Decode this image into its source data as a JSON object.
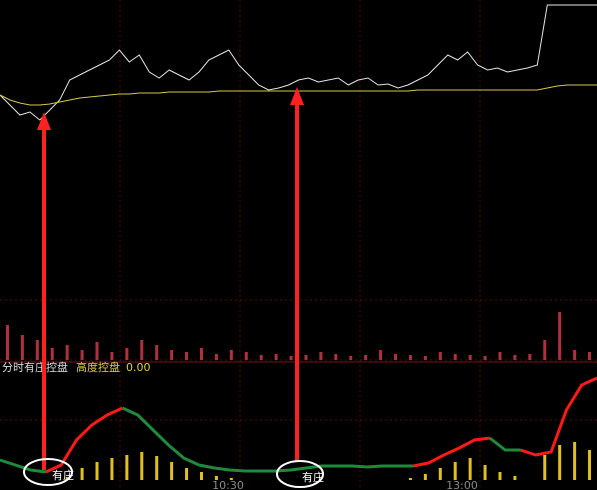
{
  "indicator": {
    "name": "分时有庄控盘",
    "label": "高度控盘",
    "value": "0.00"
  },
  "time_labels": [
    "10:30",
    "13:00"
  ],
  "annotations": [
    "有庄",
    "有庄"
  ],
  "chart_data": [
    {
      "type": "line",
      "ylim": [
        0,
        300
      ],
      "grid": true,
      "series": [
        {
          "color": "#e6e6e6",
          "values": [
            205,
            195,
            185,
            188,
            180,
            190,
            200,
            220,
            225,
            230,
            235,
            240,
            250,
            238,
            245,
            228,
            222,
            230,
            225,
            220,
            228,
            240,
            245,
            250,
            235,
            225,
            215,
            210,
            212,
            215,
            220,
            222,
            218,
            220,
            222,
            215,
            220,
            222,
            215,
            216,
            212,
            215,
            220,
            225,
            235,
            245,
            240,
            248,
            235,
            230,
            232,
            228,
            230,
            232,
            235,
            295,
            295,
            295,
            295,
            295,
            295
          ]
        },
        {
          "color": "#d8c94a",
          "values": [
            205,
            200,
            197,
            195,
            195,
            196,
            198,
            200,
            202,
            203,
            204,
            205,
            206,
            206,
            207,
            207,
            207,
            208,
            208,
            208,
            208,
            208,
            209,
            209,
            209,
            209,
            209,
            209,
            209,
            209,
            209,
            209,
            209,
            209,
            209,
            209,
            209,
            209,
            209,
            209,
            209,
            209,
            210,
            210,
            210,
            210,
            210,
            210,
            210,
            210,
            210,
            210,
            210,
            210,
            210,
            212,
            214,
            215,
            215,
            215,
            215
          ]
        }
      ]
    },
    {
      "type": "bar",
      "ylim": [
        0,
        60
      ],
      "color": "#b03040",
      "values": [
        35,
        25,
        20,
        12,
        15,
        10,
        18,
        8,
        12,
        20,
        15,
        10,
        8,
        12,
        6,
        10,
        8,
        5,
        6,
        4,
        5,
        8,
        6,
        4,
        5,
        10,
        6,
        5,
        4,
        8,
        6,
        5,
        4,
        8,
        5,
        6,
        20,
        48,
        10,
        8
      ]
    },
    {
      "type": "line",
      "ylim": [
        0,
        105
      ],
      "series": [
        {
          "color": "#ff1a1a",
          "values": [
            null,
            null,
            null,
            8,
            15,
            40,
            55,
            65,
            72,
            null,
            null,
            null,
            null,
            null,
            null,
            null,
            null,
            null,
            null,
            null,
            null,
            null,
            null,
            null,
            null,
            null,
            null,
            14,
            17,
            25,
            32,
            40,
            42,
            null,
            30,
            25,
            28,
            70,
            95,
            102
          ]
        },
        {
          "color": "#1e8a3a",
          "values": [
            20,
            15,
            10,
            8,
            null,
            null,
            null,
            null,
            72,
            65,
            50,
            35,
            22,
            15,
            12,
            10,
            9,
            9,
            9,
            10,
            12,
            14,
            14,
            14,
            13,
            14,
            14,
            14,
            null,
            null,
            null,
            null,
            42,
            30,
            30,
            null,
            null,
            null,
            null,
            null
          ]
        }
      ],
      "bars": {
        "color": "#e0c020",
        "values": [
          0,
          0,
          0,
          0,
          3,
          12,
          18,
          22,
          25,
          28,
          24,
          18,
          12,
          8,
          4,
          2,
          0,
          0,
          0,
          0,
          0,
          0,
          0,
          0,
          0,
          0,
          0,
          2,
          6,
          12,
          18,
          22,
          15,
          8,
          4,
          0,
          25,
          35,
          38,
          30
        ]
      }
    }
  ]
}
